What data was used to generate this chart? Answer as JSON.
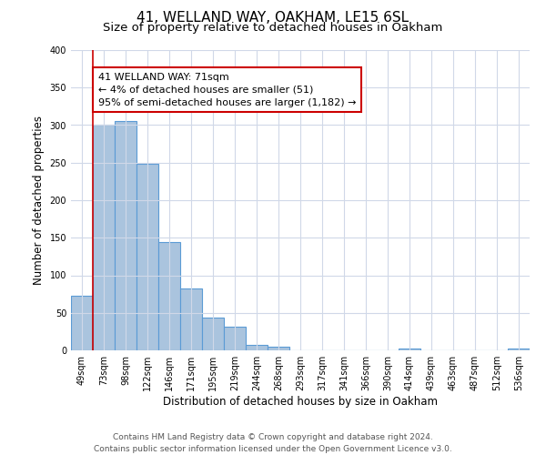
{
  "title": "41, WELLAND WAY, OAKHAM, LE15 6SL",
  "subtitle": "Size of property relative to detached houses in Oakham",
  "xlabel": "Distribution of detached houses by size in Oakham",
  "ylabel": "Number of detached properties",
  "bar_labels": [
    "49sqm",
    "73sqm",
    "98sqm",
    "122sqm",
    "146sqm",
    "171sqm",
    "195sqm",
    "219sqm",
    "244sqm",
    "268sqm",
    "293sqm",
    "317sqm",
    "341sqm",
    "366sqm",
    "390sqm",
    "414sqm",
    "439sqm",
    "463sqm",
    "487sqm",
    "512sqm",
    "536sqm"
  ],
  "bar_values": [
    73,
    300,
    305,
    248,
    144,
    83,
    44,
    32,
    7,
    5,
    0,
    0,
    0,
    0,
    0,
    3,
    0,
    0,
    0,
    0,
    2
  ],
  "bar_color": "#aac4de",
  "bar_edge_color": "#5b9bd5",
  "highlight_color": "#cc0000",
  "annotation_title": "41 WELLAND WAY: 71sqm",
  "annotation_line1": "← 4% of detached houses are smaller (51)",
  "annotation_line2": "95% of semi-detached houses are larger (1,182) →",
  "annotation_box_color": "#ffffff",
  "annotation_box_edge_color": "#cc0000",
  "ylim": [
    0,
    400
  ],
  "yticks": [
    0,
    50,
    100,
    150,
    200,
    250,
    300,
    350,
    400
  ],
  "footer_line1": "Contains HM Land Registry data © Crown copyright and database right 2024.",
  "footer_line2": "Contains public sector information licensed under the Open Government Licence v3.0.",
  "bg_color": "#ffffff",
  "grid_color": "#d0d8e8",
  "title_fontsize": 11,
  "subtitle_fontsize": 9.5,
  "axis_label_fontsize": 8.5,
  "tick_fontsize": 7,
  "footer_fontsize": 6.5,
  "annotation_fontsize": 8
}
